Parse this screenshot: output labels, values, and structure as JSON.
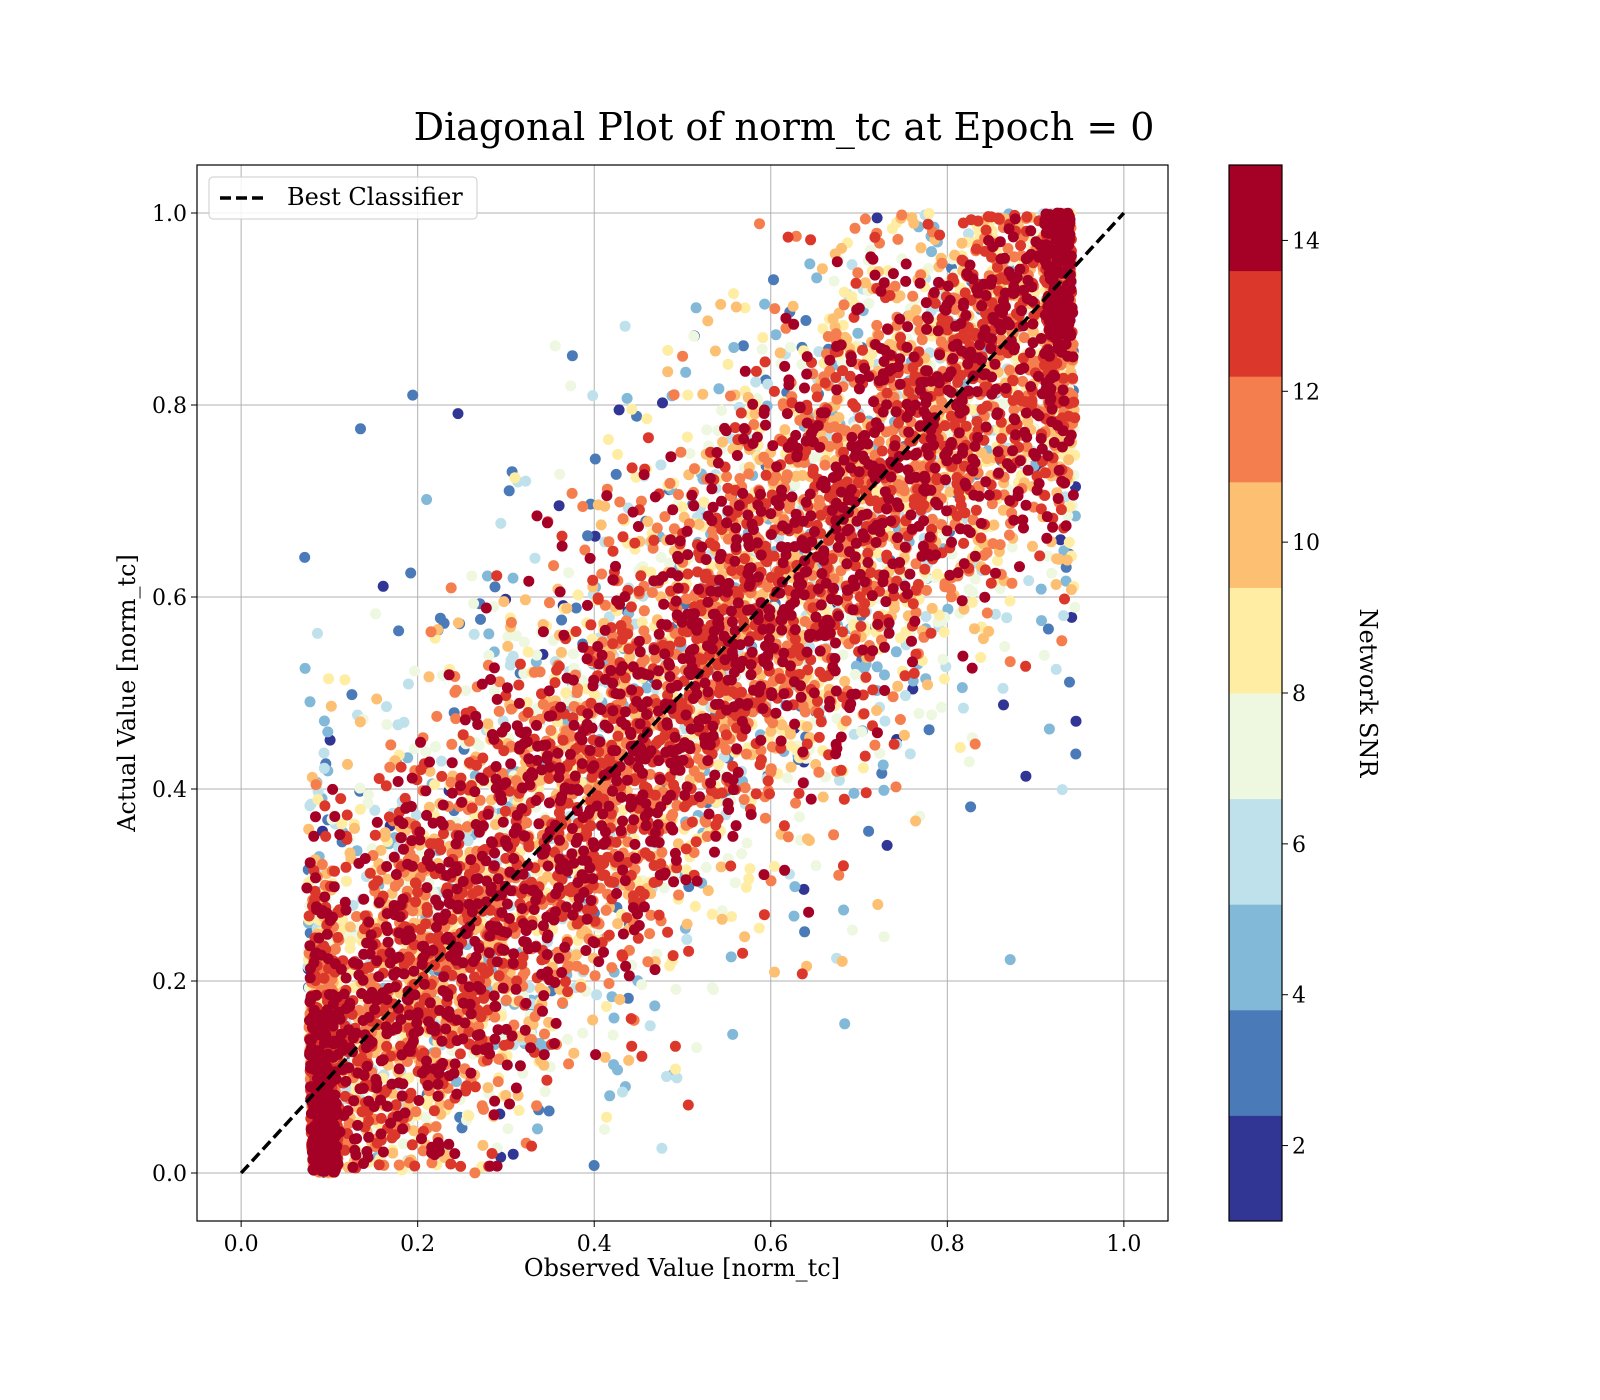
{
  "chart_data": {
    "type": "scatter",
    "title": "Diagonal Plot of norm_tc at Epoch = 0",
    "xlabel": "Observed Value [norm_tc]",
    "ylabel": "Actual Value [norm_tc]",
    "xlim": [
      -0.05,
      1.05
    ],
    "ylim": [
      -0.05,
      1.05
    ],
    "x_ticks": [
      0.0,
      0.2,
      0.4,
      0.6,
      0.8,
      1.0
    ],
    "y_ticks": [
      0.0,
      0.2,
      0.4,
      0.6,
      0.8,
      1.0
    ],
    "x_tick_labels": [
      "0.0",
      "0.2",
      "0.4",
      "0.6",
      "0.8",
      "1.0"
    ],
    "y_tick_labels": [
      "0.0",
      "0.2",
      "0.4",
      "0.6",
      "0.8",
      "1.0"
    ],
    "grid": true,
    "legend": {
      "placement": "upper-left",
      "entries": [
        {
          "label": "Best Classifier",
          "style": "dashed",
          "color": "#000000"
        }
      ]
    },
    "reference_line": {
      "name": "Best Classifier",
      "x": [
        0.0,
        1.0
      ],
      "y": [
        0.0,
        1.0
      ]
    },
    "colorbar": {
      "label": "Network SNR",
      "range": [
        1,
        15
      ],
      "tick_values": [
        2,
        4,
        6,
        8,
        10,
        12,
        14
      ],
      "tick_labels": [
        "2",
        "4",
        "6",
        "8",
        "10",
        "12",
        "14"
      ],
      "bins": [
        {
          "from": 1,
          "to": 2.4,
          "color": "#313695"
        },
        {
          "from": 2.4,
          "to": 3.8,
          "color": "#4a7ab7"
        },
        {
          "from": 3.8,
          "to": 5.2,
          "color": "#82b8d8"
        },
        {
          "from": 5.2,
          "to": 6.6,
          "color": "#bfe1ec"
        },
        {
          "from": 6.6,
          "to": 8.0,
          "color": "#eef7df"
        },
        {
          "from": 8.0,
          "to": 9.4,
          "color": "#feeda3"
        },
        {
          "from": 9.4,
          "to": 10.8,
          "color": "#fdbf71"
        },
        {
          "from": 10.8,
          "to": 12.2,
          "color": "#f57e4e"
        },
        {
          "from": 12.2,
          "to": 13.6,
          "color": "#db382b"
        },
        {
          "from": 13.6,
          "to": 15,
          "color": "#a50026"
        }
      ]
    },
    "scatter_description": {
      "x_range": [
        0.06,
        0.96
      ],
      "y_range": [
        0.0,
        1.0
      ],
      "dense_band_slope": 1.0,
      "high_snr_near_diagonal": true
    }
  }
}
